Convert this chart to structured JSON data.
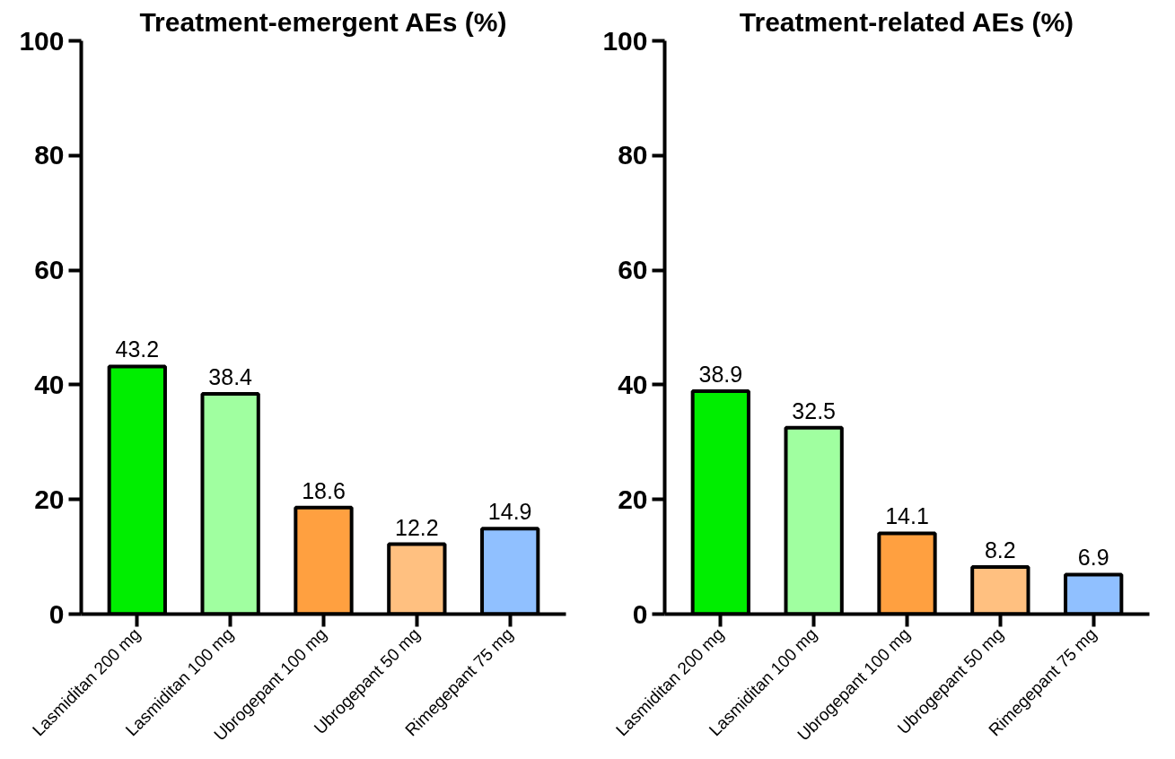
{
  "chart_data": [
    {
      "type": "bar",
      "title": "Treatment-emergent AEs (%)",
      "categories": [
        "Lasmiditan 200 mg",
        "Lasmiditan 100 mg",
        "Ubrogepant 100 mg",
        "Ubrogepant 50 mg",
        "Rimegepant 75 mg"
      ],
      "values": [
        43.2,
        38.4,
        18.6,
        12.2,
        14.9
      ],
      "colors": [
        "#00ee00",
        "#a0ffa0",
        "#ffa040",
        "#ffc080",
        "#90c0ff"
      ],
      "ylim": [
        0,
        100
      ],
      "yticks": [
        0,
        20,
        40,
        60,
        80,
        100
      ],
      "data_labels": true
    },
    {
      "type": "bar",
      "title": "Treatment-related AEs (%)",
      "categories": [
        "Lasmiditan 200 mg",
        "Lasmiditan 100 mg",
        "Ubrogepant 100 mg",
        "Ubrogepant 50 mg",
        "Rimegepant 75 mg"
      ],
      "values": [
        38.9,
        32.5,
        14.1,
        8.2,
        6.9
      ],
      "colors": [
        "#00ee00",
        "#a0ffa0",
        "#ffa040",
        "#ffc080",
        "#90c0ff"
      ],
      "ylim": [
        0,
        100
      ],
      "yticks": [
        0,
        20,
        40,
        60,
        80,
        100
      ],
      "data_labels": true
    }
  ]
}
